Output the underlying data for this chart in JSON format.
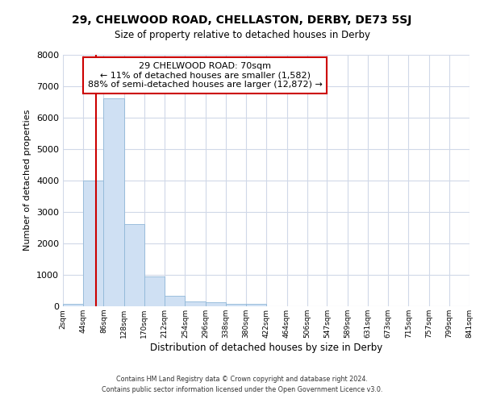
{
  "title1": "29, CHELWOOD ROAD, CHELLASTON, DERBY, DE73 5SJ",
  "title2": "Size of property relative to detached houses in Derby",
  "xlabel": "Distribution of detached houses by size in Derby",
  "ylabel": "Number of detached properties",
  "annotation_title": "29 CHELWOOD ROAD: 70sqm",
  "annotation_line1": "← 11% of detached houses are smaller (1,582)",
  "annotation_line2": "88% of semi-detached houses are larger (12,872) →",
  "footer1": "Contains HM Land Registry data © Crown copyright and database right 2024.",
  "footer2": "Contains public sector information licensed under the Open Government Licence v3.0.",
  "property_size": 70,
  "bin_edges": [
    2,
    44,
    86,
    128,
    170,
    212,
    254,
    296,
    338,
    380,
    422,
    464,
    506,
    547,
    589,
    631,
    673,
    715,
    757,
    799,
    841
  ],
  "bar_heights": [
    75,
    4000,
    6600,
    2600,
    950,
    330,
    150,
    130,
    85,
    65,
    0,
    0,
    0,
    0,
    0,
    0,
    0,
    0,
    0,
    0
  ],
  "bar_color": "#cfe0f3",
  "bar_edge_color": "#90b8d8",
  "red_line_color": "#cc0000",
  "annotation_box_edgecolor": "#cc0000",
  "background_color": "#ffffff",
  "grid_color": "#d0d8e8",
  "ylim": [
    0,
    8000
  ],
  "yticks": [
    0,
    1000,
    2000,
    3000,
    4000,
    5000,
    6000,
    7000,
    8000
  ]
}
